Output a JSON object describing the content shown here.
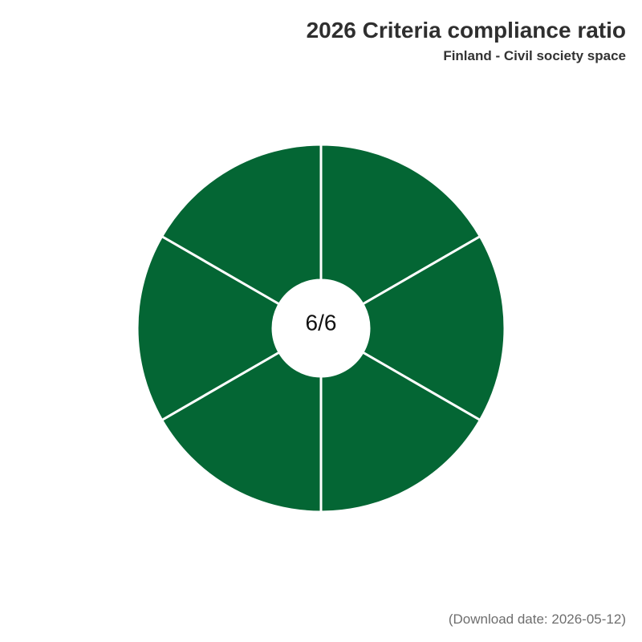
{
  "header": {
    "title": "2026 Criteria compliance ratio",
    "subtitle": "Finland - Civil society space"
  },
  "footer": {
    "download_text": "(Download date: 2026-05-12)"
  },
  "colors": {
    "met": "#046634",
    "separator": "#ffffff"
  },
  "chart_data": {
    "type": "pie",
    "variant": "donut",
    "title": "2026 Criteria compliance ratio",
    "subtitle": "Finland - Civil society space",
    "center_label": "6/6",
    "met": 6,
    "total": 6,
    "segments": [
      {
        "value": 1,
        "status": "met"
      },
      {
        "value": 1,
        "status": "met"
      },
      {
        "value": 1,
        "status": "met"
      },
      {
        "value": 1,
        "status": "met"
      },
      {
        "value": 1,
        "status": "met"
      },
      {
        "value": 1,
        "status": "met"
      }
    ]
  }
}
